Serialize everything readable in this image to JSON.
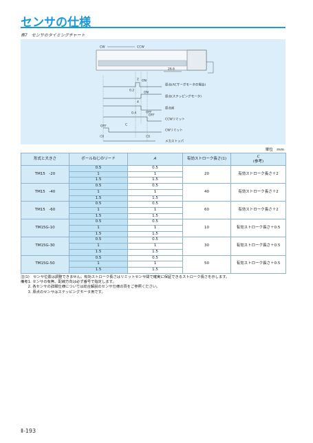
{
  "header": {
    "title": "センサの仕様"
  },
  "caption": {
    "number": "表7",
    "title": "センサのタイミングチャート"
  },
  "diagram": {
    "direction": [
      "CW",
      "CCW"
    ],
    "offset": "26.6",
    "signals": [
      {
        "state": "ON",
        "name": "原点(ACサーボモータの場合)"
      },
      {
        "state": "ON",
        "name": "原点(ステッピングモータ)"
      },
      {
        "state": "OFF",
        "name": "原点前"
      },
      {
        "state": "OFF",
        "name": "CCWリミット"
      },
      {
        "state": "OFF",
        "name": "CWリミット"
      },
      {
        "name": "メカストッパ"
      }
    ],
    "dimensions": [
      "2",
      "0.2",
      "4",
      "0.4",
      "C",
      "(1)",
      "(1)"
    ]
  },
  "unit": "単位　mm",
  "table": {
    "columns": [
      "形式と大きさ",
      "ボールねじのリード",
      "A",
      "有効ストローク長さ(1)",
      "C"
    ],
    "c_note": "(参考)",
    "groups": [
      {
        "model": "TM15　-20",
        "leads": [
          "0.5",
          "1",
          "1.5"
        ],
        "a": [
          "0.5",
          "1",
          "1.5"
        ],
        "stroke": "20",
        "c": "有効ストローク長さ＋2"
      },
      {
        "model": "TM15　-40",
        "leads": [
          "0.5",
          "1",
          "1.5"
        ],
        "a": [
          "0.5",
          "1",
          "1.5"
        ],
        "stroke": "40",
        "c": "有効ストローク長さ＋2"
      },
      {
        "model": "TM15　-60",
        "leads": [
          "0.5",
          "1",
          "1.5"
        ],
        "a": [
          "0.5",
          "1",
          "1.5"
        ],
        "stroke": "60",
        "c": "有効ストローク長さ＋2"
      },
      {
        "model": "TM15G-10",
        "leads": [
          "0.5",
          "1",
          "1.5"
        ],
        "a": [
          "0.5",
          "1",
          "1.5"
        ],
        "stroke": "10",
        "c": "有効ストローク長さ＋0.5"
      },
      {
        "model": "TM15G-30",
        "leads": [
          "0.5",
          "1",
          "1.5"
        ],
        "a": [
          "0.5",
          "1",
          "1.5"
        ],
        "stroke": "30",
        "c": "有効ストローク長さ＋0.5"
      },
      {
        "model": "TM15G-50",
        "leads": [
          "0.5",
          "1",
          "1.5"
        ],
        "a": [
          "0.5",
          "1",
          "1.5"
        ],
        "stroke": "50",
        "c": "有効ストローク長さ＋0.5"
      }
    ]
  },
  "notes": [
    "注(1)　センサ位置は調整できません。有効ストローク長さはリミットセンサ間で確実に保証できるストローク長さを示します。",
    "備考1. センサの有無、配線方向は必ず番号で指定します。",
    "　　2. 各センサの詳細仕様については総合解説のセンサ仕様の頁をご参照ください。",
    "　　3. 原点のセンサはステッピングモータ用です。"
  ],
  "page_number": "Ⅱ-193"
}
